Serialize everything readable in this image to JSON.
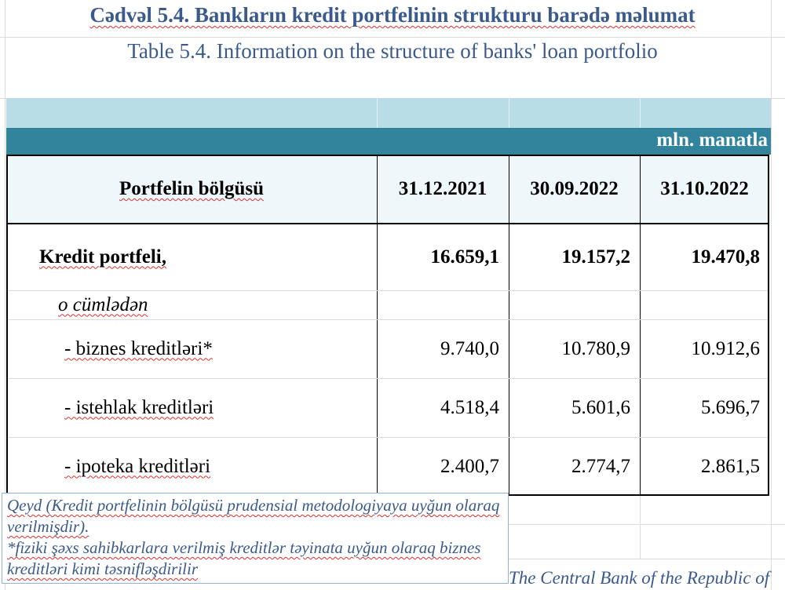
{
  "title": "Cədvəl 5.4. Bankların kredit portfelinin strukturu barədə məlumat",
  "subtitle": "Table 5.4. Information on the structure of banks' loan portfolio",
  "unit": "mln. manatla",
  "table": {
    "headers": [
      "Portfelin bölgüsü",
      "31.12.2021",
      "30.09.2022",
      "31.10.2022"
    ],
    "rows": [
      {
        "label": "Kredit portfeli,",
        "values": [
          "16.659,1",
          "19.157,2",
          "19.470,8"
        ]
      },
      {
        "label": "o cümlədən",
        "values": [
          "",
          "",
          ""
        ]
      },
      {
        "label": "- biznes kreditləri*",
        "values": [
          "9.740,0",
          "10.780,9",
          "10.912,6"
        ]
      },
      {
        "label": "- istehlak kreditləri",
        "values": [
          "4.518,4",
          "5.601,6",
          "5.696,7"
        ]
      },
      {
        "label": "- ipoteka kreditləri",
        "values": [
          "2.400,7",
          "2.774,7",
          "2.861,5"
        ]
      }
    ]
  },
  "notes": {
    "line1": "Qeyd (Kredit portfelinin bölgüsü prudensial metodologiyaya uyğun olaraq verilmişdir).",
    "line2": "*fiziki şəxs sahibkarlara verilmiş kreditlər təyinata uyğun olaraq biznes kreditləri kimi təsnifləşdirilir"
  },
  "footer": "The Central Bank of the Republic of",
  "colors": {
    "title": "#3a5a8c",
    "band_light": "#b8dde6",
    "band_teal": "#31849b"
  }
}
